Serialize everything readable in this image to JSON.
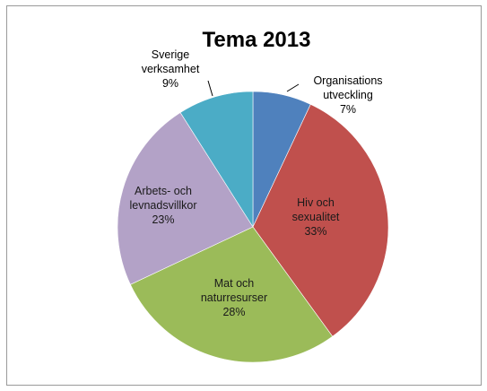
{
  "chart_data": {
    "type": "pie",
    "title": "Tema 2013",
    "slices": [
      {
        "label_lines": [
          "Organisations",
          "utveckling"
        ],
        "pct_label": "7%",
        "value": 7,
        "color": "#4f81bd"
      },
      {
        "label_lines": [
          "Hiv och",
          "sexualitet"
        ],
        "pct_label": "33%",
        "value": 33,
        "color": "#c0504d"
      },
      {
        "label_lines": [
          "Mat och",
          "naturresurser"
        ],
        "pct_label": "28%",
        "value": 28,
        "color": "#9bbb59"
      },
      {
        "label_lines": [
          "Arbets- och",
          "levnadsvillkor"
        ],
        "pct_label": "23%",
        "value": 23,
        "color": "#b3a2c7"
      },
      {
        "label_lines": [
          "Sverige",
          "verksamhet"
        ],
        "pct_label": "9%",
        "value": 9,
        "color": "#4bacc6"
      }
    ],
    "legend": "none"
  }
}
